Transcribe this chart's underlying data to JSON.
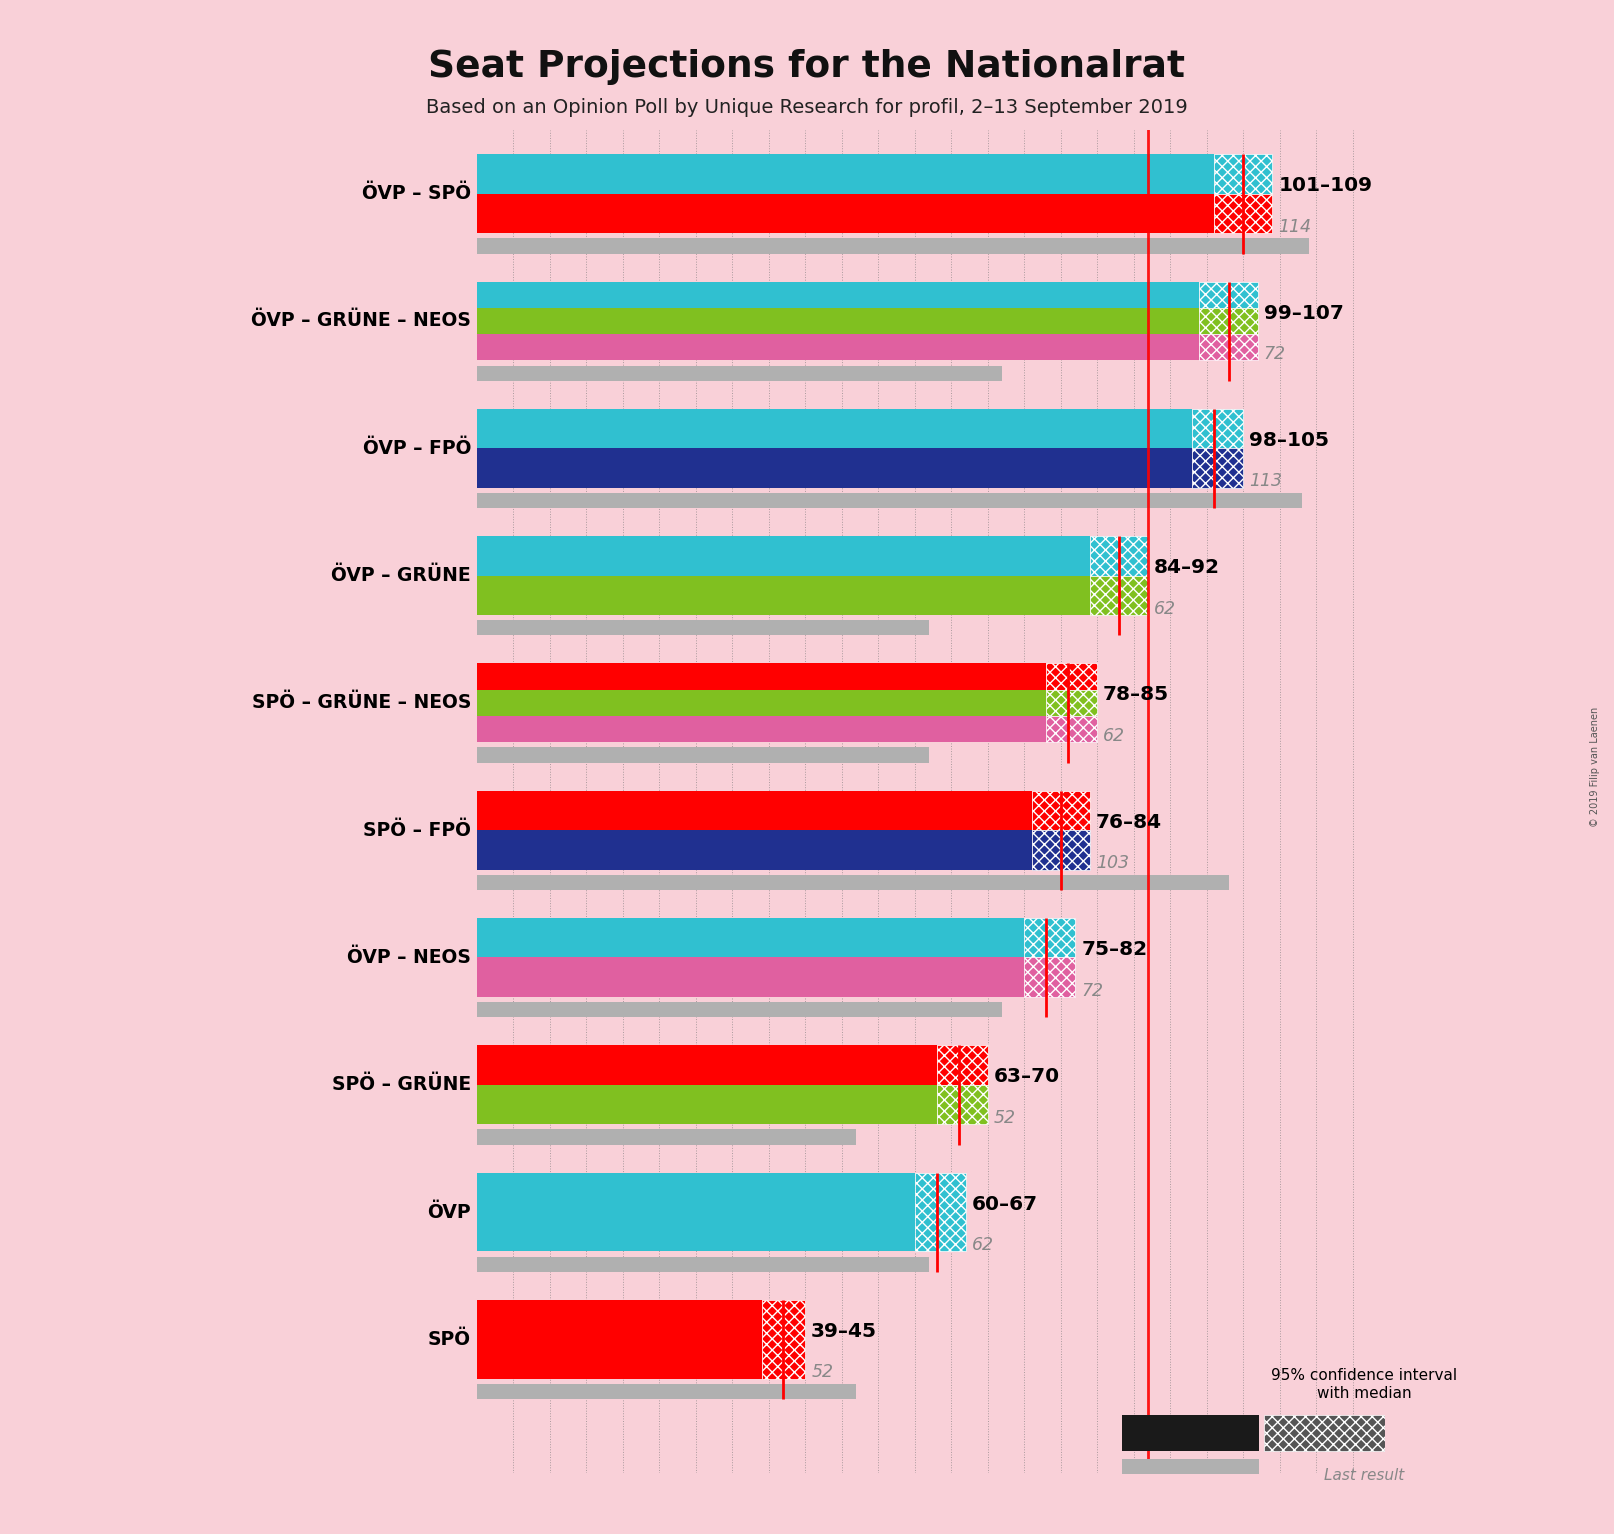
{
  "title": "Seat Projections for the Nationalrat",
  "subtitle": "Based on an Opinion Poll by Unique Research for profil, 2–13 September 2019",
  "background_color": "#f9d0d8",
  "majority_line": 92,
  "x_max": 125,
  "coalitions": [
    {
      "label": "ÖVP – SPÖ",
      "colors": [
        "#30c0d0",
        "#ff0000"
      ],
      "ci_low": 101,
      "ci_high": 109,
      "median": 105,
      "last_result": 114
    },
    {
      "label": "ÖVP – GRÜNE – NEOS",
      "colors": [
        "#30c0d0",
        "#80c020",
        "#e060a0"
      ],
      "ci_low": 99,
      "ci_high": 107,
      "median": 103,
      "last_result": 72
    },
    {
      "label": "ÖVP – FPÖ",
      "colors": [
        "#30c0d0",
        "#203090"
      ],
      "ci_low": 98,
      "ci_high": 105,
      "median": 101,
      "last_result": 113
    },
    {
      "label": "ÖVP – GRÜNE",
      "colors": [
        "#30c0d0",
        "#80c020"
      ],
      "ci_low": 84,
      "ci_high": 92,
      "median": 88,
      "last_result": 62
    },
    {
      "label": "SPÖ – GRÜNE – NEOS",
      "colors": [
        "#ff0000",
        "#80c020",
        "#e060a0"
      ],
      "ci_low": 78,
      "ci_high": 85,
      "median": 81,
      "last_result": 62
    },
    {
      "label": "SPÖ – FPÖ",
      "colors": [
        "#ff0000",
        "#203090"
      ],
      "ci_low": 76,
      "ci_high": 84,
      "median": 80,
      "last_result": 103
    },
    {
      "label": "ÖVP – NEOS",
      "colors": [
        "#30c0d0",
        "#e060a0"
      ],
      "ci_low": 75,
      "ci_high": 82,
      "median": 78,
      "last_result": 72
    },
    {
      "label": "SPÖ – GRÜNE",
      "colors": [
        "#ff0000",
        "#80c020"
      ],
      "ci_low": 63,
      "ci_high": 70,
      "median": 66,
      "last_result": 52
    },
    {
      "label": "ÖVP",
      "colors": [
        "#30c0d0"
      ],
      "ci_low": 60,
      "ci_high": 67,
      "median": 63,
      "last_result": 62
    },
    {
      "label": "SPÖ",
      "colors": [
        "#ff0000"
      ],
      "ci_low": 39,
      "ci_high": 45,
      "median": 42,
      "last_result": 52
    }
  ]
}
